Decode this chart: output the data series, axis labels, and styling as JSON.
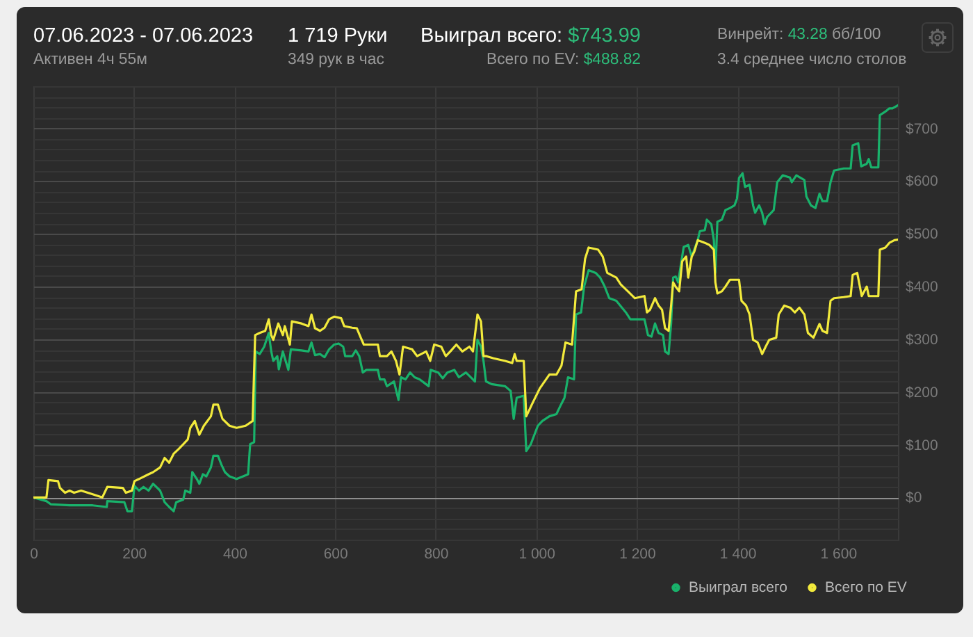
{
  "chart_data": {
    "type": "line",
    "title": "07.06.2023 - 07.06.2023",
    "subtitle": "Активен 4ч 55м",
    "annotations": [
      "1 719 Руки",
      "349 рук в час",
      "Выиграл всего: $743.99",
      "Всего по EV: $488.82",
      "Винрейт: 43.28 бб/100",
      "3.4 среднее число столов"
    ],
    "xlim": [
      0,
      1719
    ],
    "xticks": [
      0,
      200,
      400,
      600,
      800,
      {
        "value": 1000,
        "label": "1 000"
      },
      {
        "value": 1200,
        "label": "1 200"
      },
      {
        "value": 1400,
        "label": "1 400"
      },
      {
        "value": 1600,
        "label": "1 600"
      }
    ],
    "ylim": [
      -80,
      780
    ],
    "yticks": [
      {
        "value": -80,
        "label": null
      },
      {
        "value": -60,
        "label": null
      },
      {
        "value": -40,
        "label": null
      },
      {
        "value": -20,
        "label": null
      },
      {
        "value": 0,
        "label": "$0"
      },
      {
        "value": 20,
        "label": null
      },
      {
        "value": 40,
        "label": null
      },
      {
        "value": 60,
        "label": null
      },
      {
        "value": 80,
        "label": null
      },
      {
        "value": 100,
        "label": "$100"
      },
      {
        "value": 120,
        "label": null
      },
      {
        "value": 140,
        "label": null
      },
      {
        "value": 160,
        "label": null
      },
      {
        "value": 180,
        "label": null
      },
      {
        "value": 200,
        "label": "$200"
      },
      {
        "value": 220,
        "label": null
      },
      {
        "value": 240,
        "label": null
      },
      {
        "value": 260,
        "label": null
      },
      {
        "value": 280,
        "label": null
      },
      {
        "value": 300,
        "label": "$300"
      },
      {
        "value": 320,
        "label": null
      },
      {
        "value": 340,
        "label": null
      },
      {
        "value": 360,
        "label": null
      },
      {
        "value": 380,
        "label": null
      },
      {
        "value": 400,
        "label": "$400"
      },
      {
        "value": 420,
        "label": null
      },
      {
        "value": 440,
        "label": null
      },
      {
        "value": 460,
        "label": null
      },
      {
        "value": 480,
        "label": null
      },
      {
        "value": 500,
        "label": "$500"
      },
      {
        "value": 520,
        "label": null
      },
      {
        "value": 540,
        "label": null
      },
      {
        "value": 560,
        "label": null
      },
      {
        "value": 580,
        "label": null
      },
      {
        "value": 600,
        "label": "$600"
      },
      {
        "value": 620,
        "label": null
      },
      {
        "value": 640,
        "label": null
      },
      {
        "value": 660,
        "label": null
      },
      {
        "value": 680,
        "label": null
      },
      {
        "value": 700,
        "label": "$700"
      },
      {
        "value": 720,
        "label": null
      },
      {
        "value": 740,
        "label": null
      },
      {
        "value": 760,
        "label": null
      },
      {
        "value": 780,
        "label": null
      }
    ],
    "grid": true,
    "legend": "bottom right",
    "series": [
      {
        "name": "Выиграл всего",
        "color": "#19b26b",
        "x": [
          0,
          26,
          35,
          72,
          118,
          146,
          147,
          181,
          187,
          196,
          201,
          210,
          219,
          229,
          238,
          252,
          261,
          270,
          279,
          284,
          298,
          302,
          312,
          316,
          325,
          330,
          337,
          344,
          353,
          358,
          367,
          374,
          381,
          390,
          404,
          417,
          427,
          431,
          439,
          442,
          450,
          459,
          468,
          473,
          477,
          485,
          488,
          496,
          500,
          507,
          512,
          533,
          547,
          553,
          560,
          570,
          579,
          588,
          598,
          607,
          616,
          620,
          634,
          641,
          648,
          655,
          662,
          685,
          689,
          698,
          703,
          717,
          726,
          731,
          740,
          749,
          758,
          768,
          786,
          790,
          805,
          814,
          823,
          837,
          846,
          860,
          874,
          878,
          883,
          890,
          895,
          900,
          911,
          938,
          949,
          955,
          961,
          975,
          980,
          989,
          1003,
          1012,
          1026,
          1040,
          1049,
          1056,
          1063,
          1075,
          1079,
          1089,
          1095,
          1104,
          1118,
          1127,
          1136,
          1145,
          1159,
          1178,
          1187,
          1205,
          1215,
          1222,
          1229,
          1236,
          1243,
          1252,
          1256,
          1263,
          1268,
          1272,
          1277,
          1282,
          1287,
          1293,
          1302,
          1309,
          1314,
          1321,
          1325,
          1335,
          1339,
          1348,
          1353,
          1356,
          1360,
          1369,
          1376,
          1385,
          1394,
          1399,
          1403,
          1410,
          1415,
          1424,
          1431,
          1435,
          1443,
          1449,
          1454,
          1459,
          1472,
          1479,
          1490,
          1504,
          1508,
          1517,
          1533,
          1537,
          1546,
          1555,
          1563,
          1569,
          1578,
          1585,
          1592,
          1611,
          1625,
          1629,
          1640,
          1646,
          1657,
          1661,
          1666,
          1680,
          1683,
          1694,
          1702,
          1708,
          1719
        ],
        "values": [
          0,
          -7,
          -13,
          -15,
          -15,
          -18,
          -7,
          -9,
          -26,
          -26,
          22,
          13,
          20,
          13,
          26,
          13,
          -9,
          -18,
          -26,
          -9,
          -4,
          13,
          9,
          48,
          35,
          26,
          44,
          40,
          57,
          79,
          79,
          62,
          48,
          40,
          35,
          40,
          44,
          101,
          105,
          277,
          272,
          286,
          312,
          277,
          259,
          268,
          243,
          277,
          264,
          242,
          281,
          279,
          277,
          294,
          270,
          272,
          266,
          281,
          290,
          292,
          286,
          268,
          268,
          279,
          268,
          237,
          242,
          242,
          224,
          224,
          211,
          220,
          185,
          228,
          224,
          237,
          228,
          224,
          211,
          242,
          237,
          226,
          237,
          242,
          228,
          237,
          224,
          220,
          299,
          286,
          259,
          220,
          215,
          211,
          202,
          149,
          189,
          193,
          88,
          101,
          136,
          145,
          154,
          158,
          176,
          189,
          228,
          224,
          347,
          351,
          400,
          431,
          426,
          417,
          400,
          378,
          373,
          351,
          338,
          338,
          338,
          308,
          305,
          330,
          312,
          308,
          277,
          272,
          330,
          417,
          419,
          408,
          439,
          475,
          479,
          457,
          470,
          488,
          505,
          507,
          527,
          518,
          488,
          426,
          523,
          527,
          545,
          549,
          554,
          567,
          606,
          615,
          589,
          593,
          554,
          540,
          554,
          540,
          518,
          532,
          545,
          598,
          611,
          607,
          598,
          611,
          602,
          571,
          554,
          549,
          576,
          562,
          562,
          598,
          620,
          624,
          624,
          668,
          672,
          628,
          633,
          642,
          626,
          626,
          725,
          732,
          738,
          738,
          744
        ]
      },
      {
        "name": "Всего по EV",
        "color": "#f2ea3c",
        "x": [
          0,
          26,
          30,
          49,
          53,
          63,
          72,
          81,
          95,
          118,
          137,
          147,
          178,
          184,
          196,
          201,
          210,
          229,
          238,
          252,
          261,
          270,
          279,
          289,
          298,
          307,
          312,
          321,
          330,
          339,
          353,
          358,
          367,
          376,
          390,
          404,
          422,
          436,
          441,
          450,
          461,
          468,
          473,
          477,
          487,
          496,
          500,
          510,
          514,
          533,
          547,
          553,
          560,
          570,
          579,
          588,
          598,
          612,
          618,
          634,
          643,
          651,
          657,
          685,
          689,
          703,
          712,
          721,
          728,
          735,
          753,
          763,
          781,
          789,
          797,
          811,
          820,
          829,
          841,
          853,
          867,
          874,
          883,
          890,
          895,
          901,
          915,
          938,
          952,
          957,
          961,
          975,
          980,
          993,
          1007,
          1026,
          1040,
          1050,
          1058,
          1071,
          1079,
          1090,
          1097,
          1104,
          1123,
          1132,
          1141,
          1159,
          1168,
          1182,
          1196,
          1215,
          1220,
          1226,
          1236,
          1243,
          1250,
          1256,
          1263,
          1268,
          1272,
          1277,
          1284,
          1290,
          1298,
          1302,
          1309,
          1314,
          1321,
          1335,
          1344,
          1353,
          1356,
          1360,
          1369,
          1376,
          1385,
          1403,
          1408,
          1417,
          1424,
          1431,
          1440,
          1449,
          1456,
          1463,
          1477,
          1482,
          1493,
          1505,
          1514,
          1523,
          1533,
          1540,
          1551,
          1563,
          1569,
          1578,
          1585,
          1592,
          1611,
          1625,
          1629,
          1638,
          1647,
          1657,
          1661,
          1680,
          1683,
          1694,
          1702,
          1712,
          1719
        ],
        "values": [
          0,
          0,
          33,
          31,
          18,
          9,
          13,
          9,
          13,
          6,
          0,
          20,
          18,
          9,
          13,
          31,
          35,
          44,
          48,
          57,
          75,
          66,
          83,
          92,
          101,
          110,
          132,
          145,
          119,
          136,
          154,
          176,
          176,
          149,
          136,
          132,
          136,
          145,
          308,
          312,
          316,
          338,
          308,
          299,
          330,
          308,
          325,
          290,
          334,
          330,
          325,
          347,
          321,
          316,
          322,
          338,
          343,
          340,
          325,
          322,
          321,
          303,
          290,
          290,
          268,
          268,
          277,
          259,
          233,
          286,
          281,
          268,
          277,
          259,
          290,
          286,
          268,
          277,
          290,
          277,
          286,
          277,
          347,
          334,
          268,
          268,
          264,
          259,
          255,
          272,
          259,
          259,
          154,
          180,
          207,
          233,
          233,
          250,
          294,
          290,
          391,
          395,
          453,
          474,
          470,
          457,
          426,
          417,
          404,
          391,
          378,
          382,
          351,
          356,
          378,
          364,
          356,
          321,
          316,
          364,
          408,
          400,
          391,
          448,
          457,
          417,
          457,
          466,
          488,
          483,
          479,
          470,
          408,
          387,
          391,
          400,
          413,
          413,
          373,
          364,
          347,
          299,
          294,
          272,
          286,
          299,
          303,
          347,
          364,
          360,
          351,
          360,
          347,
          312,
          303,
          329,
          316,
          312,
          373,
          378,
          380,
          382,
          422,
          426,
          382,
          400,
          382,
          382,
          470,
          474,
          483,
          488,
          489
        ]
      }
    ]
  }
}
